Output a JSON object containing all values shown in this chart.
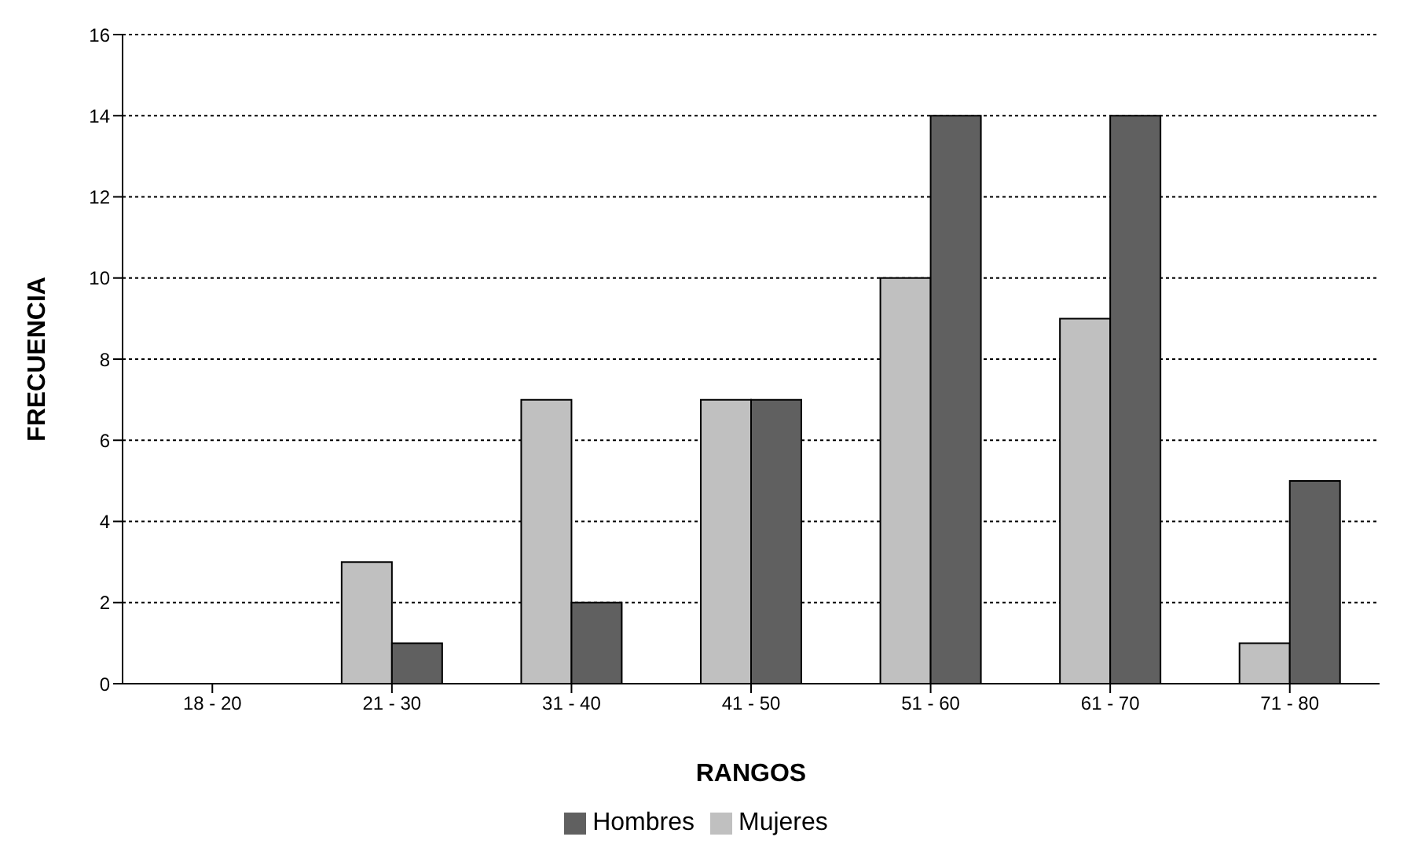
{
  "chart_data": {
    "type": "bar",
    "xlabel": "RANGOS",
    "ylabel": "FRECUENCIA",
    "categories": [
      "18 - 20",
      "21 - 30",
      "31 - 40",
      "41 - 50",
      "51 - 60",
      "61 - 70",
      "71 - 80"
    ],
    "series": [
      {
        "name": "Mujeres",
        "color": "#c0c0c0",
        "values": [
          0,
          3,
          7,
          7,
          10,
          9,
          1
        ]
      },
      {
        "name": "Hombres",
        "color": "#606060",
        "values": [
          0,
          1,
          2,
          7,
          14,
          14,
          5
        ]
      }
    ],
    "ylim": [
      0,
      16
    ],
    "yticks": [
      0,
      2,
      4,
      6,
      8,
      10,
      12,
      14,
      16
    ],
    "grid": "y",
    "legend": "bottom"
  }
}
